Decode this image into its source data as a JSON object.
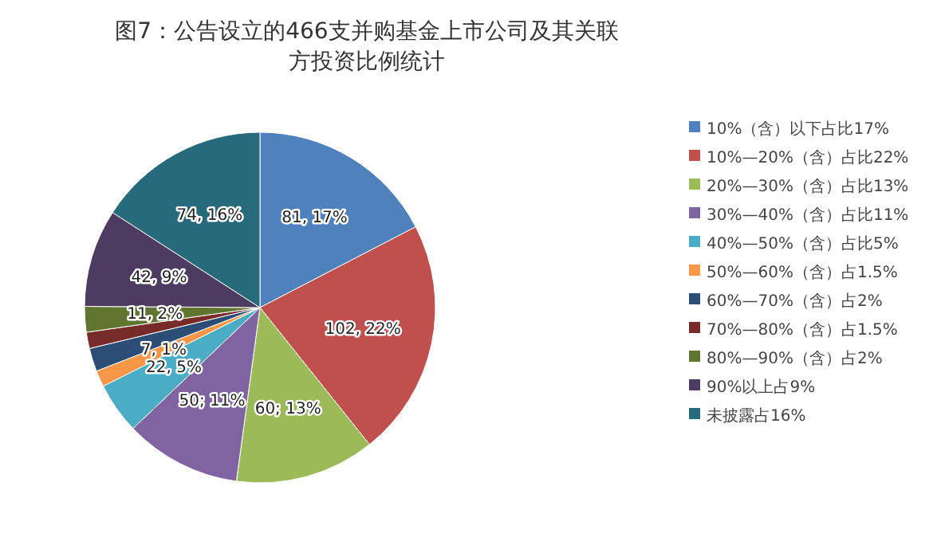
{
  "chart_data": {
    "type": "pie",
    "title": "图7：公告设立的466支并购基金上市公司及其关联方投资比例统计",
    "categories": [
      "10%（含）以下占比17%",
      "10%—20%（含）占比22%",
      "20%—30%（含）占比13%",
      "30%—40%（含）占比11%",
      "40%—50%（含）占比5%",
      "50%—60%（含）占1.5%",
      "60%—70%（含）占2%",
      "70%—80%（含）占1.5%",
      "80%—90%（含）占2%",
      "90%以上占9%",
      "未披露占16%"
    ],
    "values": [
      81,
      102,
      60,
      50,
      22,
      7,
      10,
      7,
      11,
      42,
      74
    ],
    "colors": [
      "#4f81bd",
      "#c0504d",
      "#9bbb59",
      "#8064a2",
      "#4bacc6",
      "#f79646",
      "#2c4d75",
      "#772c2a",
      "#5f7530",
      "#4d3b62",
      "#276a7c"
    ],
    "value_labels": [
      "81, 17%",
      "102, 22%",
      "60; 13%",
      "50; 11%",
      "22, 5%",
      "7, 1%",
      null,
      null,
      "11, 2%",
      "42, 9%",
      "74, 16%"
    ],
    "legend": "right"
  }
}
